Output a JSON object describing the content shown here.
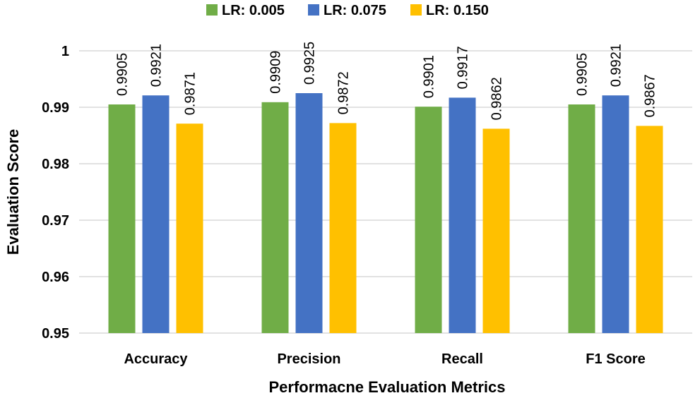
{
  "chart_data": {
    "type": "bar",
    "title": "",
    "xlabel": "Performacne Evaluation Metrics",
    "ylabel": "Evaluation Score",
    "ylim": [
      0.95,
      1.0
    ],
    "yticks": [
      0.95,
      0.96,
      0.97,
      0.98,
      0.99,
      1.0
    ],
    "ytick_labels": [
      "0.95",
      "0.96",
      "0.97",
      "0.98",
      "0.99",
      "1"
    ],
    "grid": true,
    "legend_position": "top",
    "categories": [
      "Accuracy",
      "Precision",
      "Recall",
      "F1 Score"
    ],
    "series": [
      {
        "name": "LR: 0.005",
        "color": "#70ad47",
        "values": [
          0.9905,
          0.9909,
          0.9901,
          0.9905
        ],
        "labels": [
          "0.9905",
          "0.9909",
          "0.9901",
          "0.9905"
        ]
      },
      {
        "name": "LR: 0.075",
        "color": "#4472c4",
        "values": [
          0.9921,
          0.9925,
          0.9917,
          0.9921
        ],
        "labels": [
          "0.9921",
          "0.9925",
          "0.9917",
          "0.9921"
        ]
      },
      {
        "name": "LR: 0.150",
        "color": "#ffc000",
        "values": [
          0.9871,
          0.9872,
          0.9862,
          0.9867
        ],
        "labels": [
          "0.9871",
          "0.9872",
          "0.9862",
          "0.9867"
        ]
      }
    ]
  }
}
